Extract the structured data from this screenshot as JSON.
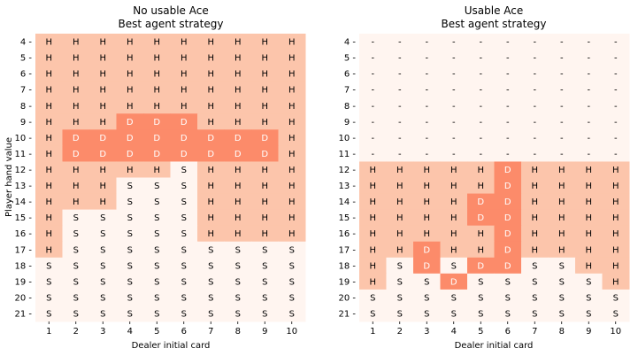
{
  "chart_data": [
    {
      "type": "heatmap",
      "title": "No usable Ace",
      "subtitle": "Best agent strategy",
      "xlabel": "Dealer initial card",
      "ylabel": "Player hand value",
      "x": [
        1,
        2,
        3,
        4,
        5,
        6,
        7,
        8,
        9,
        10
      ],
      "y": [
        4,
        5,
        6,
        7,
        8,
        9,
        10,
        11,
        12,
        13,
        14,
        15,
        16,
        17,
        18,
        19,
        20,
        21
      ],
      "cells": [
        [
          "H",
          "H",
          "H",
          "H",
          "H",
          "H",
          "H",
          "H",
          "H",
          "H"
        ],
        [
          "H",
          "H",
          "H",
          "H",
          "H",
          "H",
          "H",
          "H",
          "H",
          "H"
        ],
        [
          "H",
          "H",
          "H",
          "H",
          "H",
          "H",
          "H",
          "H",
          "H",
          "H"
        ],
        [
          "H",
          "H",
          "H",
          "H",
          "H",
          "H",
          "H",
          "H",
          "H",
          "H"
        ],
        [
          "H",
          "H",
          "H",
          "H",
          "H",
          "H",
          "H",
          "H",
          "H",
          "H"
        ],
        [
          "H",
          "H",
          "H",
          "D",
          "D",
          "D",
          "H",
          "H",
          "H",
          "H"
        ],
        [
          "H",
          "D",
          "D",
          "D",
          "D",
          "D",
          "D",
          "D",
          "D",
          "H"
        ],
        [
          "H",
          "D",
          "D",
          "D",
          "D",
          "D",
          "D",
          "D",
          "D",
          "H"
        ],
        [
          "H",
          "H",
          "H",
          "H",
          "H",
          "S",
          "H",
          "H",
          "H",
          "H"
        ],
        [
          "H",
          "H",
          "H",
          "S",
          "S",
          "S",
          "H",
          "H",
          "H",
          "H"
        ],
        [
          "H",
          "H",
          "H",
          "S",
          "S",
          "S",
          "H",
          "H",
          "H",
          "H"
        ],
        [
          "H",
          "S",
          "S",
          "S",
          "S",
          "S",
          "H",
          "H",
          "H",
          "H"
        ],
        [
          "H",
          "S",
          "S",
          "S",
          "S",
          "S",
          "H",
          "H",
          "H",
          "H"
        ],
        [
          "H",
          "S",
          "S",
          "S",
          "S",
          "S",
          "S",
          "S",
          "S",
          "S"
        ],
        [
          "S",
          "S",
          "S",
          "S",
          "S",
          "S",
          "S",
          "S",
          "S",
          "S"
        ],
        [
          "S",
          "S",
          "S",
          "S",
          "S",
          "S",
          "S",
          "S",
          "S",
          "S"
        ],
        [
          "S",
          "S",
          "S",
          "S",
          "S",
          "S",
          "S",
          "S",
          "S",
          "S"
        ],
        [
          "S",
          "S",
          "S",
          "S",
          "S",
          "S",
          "S",
          "S",
          "S",
          "S"
        ]
      ]
    },
    {
      "type": "heatmap",
      "title": "Usable Ace",
      "subtitle": "Best agent strategy",
      "xlabel": "Dealer initial card",
      "ylabel": "",
      "x": [
        1,
        2,
        3,
        4,
        5,
        6,
        7,
        8,
        9,
        10
      ],
      "y": [
        4,
        5,
        6,
        7,
        8,
        9,
        10,
        11,
        12,
        13,
        14,
        15,
        16,
        17,
        18,
        19,
        20,
        21
      ],
      "cells": [
        [
          "-",
          "-",
          "-",
          "-",
          "-",
          "-",
          "-",
          "-",
          "-",
          "-"
        ],
        [
          "-",
          "-",
          "-",
          "-",
          "-",
          "-",
          "-",
          "-",
          "-",
          "-"
        ],
        [
          "-",
          "-",
          "-",
          "-",
          "-",
          "-",
          "-",
          "-",
          "-",
          "-"
        ],
        [
          "-",
          "-",
          "-",
          "-",
          "-",
          "-",
          "-",
          "-",
          "-",
          "-"
        ],
        [
          "-",
          "-",
          "-",
          "-",
          "-",
          "-",
          "-",
          "-",
          "-",
          "-"
        ],
        [
          "-",
          "-",
          "-",
          "-",
          "-",
          "-",
          "-",
          "-",
          "-",
          "-"
        ],
        [
          "-",
          "-",
          "-",
          "-",
          "-",
          "-",
          "-",
          "-",
          "-",
          "-"
        ],
        [
          "-",
          "-",
          "-",
          "-",
          "-",
          "-",
          "-",
          "-",
          "-",
          "-"
        ],
        [
          "H",
          "H",
          "H",
          "H",
          "H",
          "D",
          "H",
          "H",
          "H",
          "H"
        ],
        [
          "H",
          "H",
          "H",
          "H",
          "H",
          "D",
          "H",
          "H",
          "H",
          "H"
        ],
        [
          "H",
          "H",
          "H",
          "H",
          "D",
          "D",
          "H",
          "H",
          "H",
          "H"
        ],
        [
          "H",
          "H",
          "H",
          "H",
          "D",
          "D",
          "H",
          "H",
          "H",
          "H"
        ],
        [
          "H",
          "H",
          "H",
          "H",
          "H",
          "D",
          "H",
          "H",
          "H",
          "H"
        ],
        [
          "H",
          "H",
          "D",
          "H",
          "H",
          "D",
          "H",
          "H",
          "H",
          "H"
        ],
        [
          "H",
          "S",
          "D",
          "S",
          "D",
          "D",
          "S",
          "S",
          "H",
          "H"
        ],
        [
          "H",
          "S",
          "S",
          "D",
          "S",
          "S",
          "S",
          "S",
          "S",
          "H"
        ],
        [
          "S",
          "S",
          "S",
          "S",
          "S",
          "S",
          "S",
          "S",
          "S",
          "S"
        ],
        [
          "S",
          "S",
          "S",
          "S",
          "S",
          "S",
          "S",
          "S",
          "S",
          "S"
        ]
      ]
    }
  ],
  "colors": {
    "S": "#fff5f0",
    "H": "#fcc5ab",
    "D": "#fc8b6a",
    "-": "#fff5f0",
    "text_dark": "#000000",
    "text_light": "#ffffff"
  }
}
